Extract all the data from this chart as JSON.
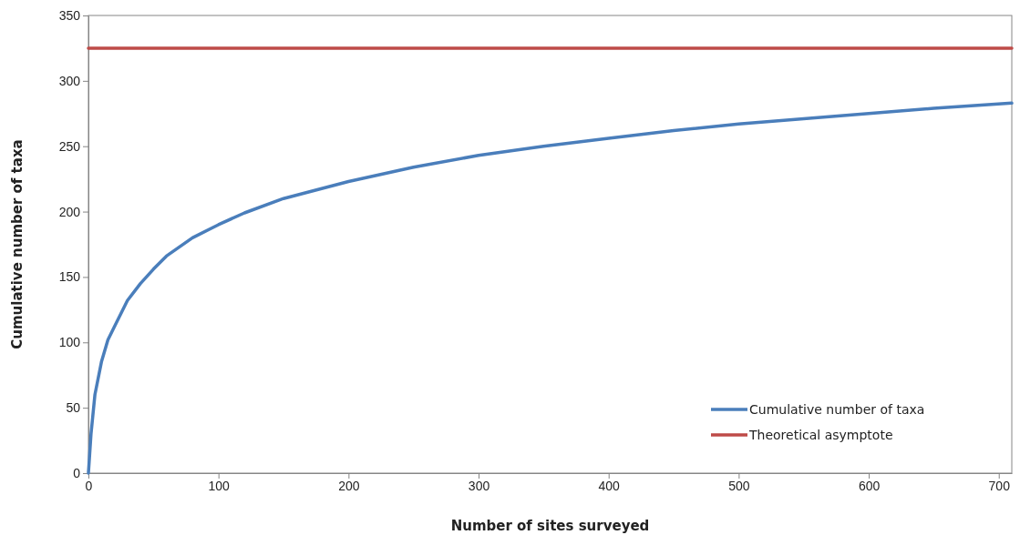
{
  "chart_data": {
    "type": "line",
    "xlabel": "Number of sites surveyed",
    "ylabel": "Cumulative number of taxa",
    "xlim": [
      0,
      710
    ],
    "xticks": [
      0,
      100,
      200,
      300,
      400,
      500,
      600,
      700
    ],
    "ylim": [
      0,
      350
    ],
    "yticks": [
      0,
      50,
      100,
      150,
      200,
      250,
      300,
      350
    ],
    "grid": false,
    "legend": "bottom right",
    "marker": "none",
    "line_style": "solid",
    "series": [
      {
        "name": "Cumulative number of taxa",
        "color": "#4a7ebb",
        "x": [
          0,
          2,
          5,
          10,
          15,
          20,
          30,
          40,
          50,
          60,
          80,
          100,
          120,
          150,
          200,
          250,
          300,
          350,
          400,
          450,
          500,
          550,
          600,
          650,
          710
        ],
        "values": [
          0,
          30,
          60,
          85,
          102,
          112,
          132,
          145,
          156,
          166,
          180,
          190,
          199,
          210,
          223,
          234,
          243,
          250,
          256,
          262,
          267,
          271,
          275,
          279,
          283
        ]
      },
      {
        "name": "Theoretical asymptote",
        "color": "#be4b48",
        "x": [
          0,
          710
        ],
        "values": [
          325,
          325
        ]
      }
    ]
  }
}
